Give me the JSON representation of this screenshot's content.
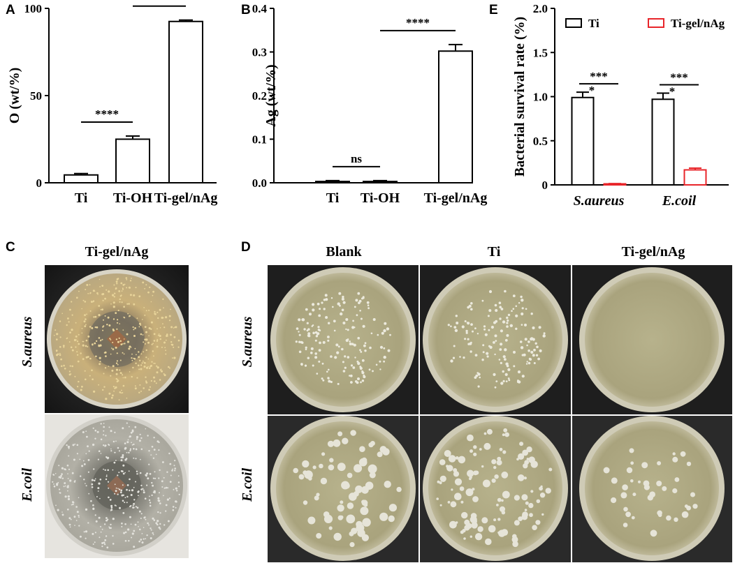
{
  "panels": {
    "A": {
      "letter": "A"
    },
    "B": {
      "letter": "B"
    },
    "C": {
      "letter": "C",
      "column_label": "Ti-gel/nAg",
      "row_labels": [
        "S.aureus",
        "E.coil"
      ]
    },
    "D": {
      "letter": "D",
      "column_labels": [
        "Blank",
        "Ti",
        "Ti-gel/nAg"
      ],
      "row_labels": [
        "S.aureus",
        "E.coil"
      ]
    },
    "E": {
      "letter": "E"
    }
  },
  "chart_data": [
    {
      "id": "A",
      "type": "bar",
      "ylabel": "O (wt/%)",
      "categories": [
        "Ti",
        "Ti-OH",
        "Ti-gel/nAg"
      ],
      "values": [
        4.5,
        25,
        92.5
      ],
      "errors": [
        0.8,
        1.8,
        0.8
      ],
      "ylim": [
        0,
        100
      ],
      "yticks": [
        "0",
        "50",
        "100"
      ],
      "bar_color": "#ffffff",
      "annotations": [
        {
          "text": "****",
          "between": [
            0,
            1
          ]
        },
        {
          "text": "****",
          "between": [
            1,
            2
          ]
        }
      ]
    },
    {
      "id": "B",
      "type": "bar",
      "ylabel": "Ag (wt/%)",
      "categories": [
        "Ti",
        "Ti-OH",
        "Ti-gel/nAg"
      ],
      "values": [
        0.003,
        0.003,
        0.302
      ],
      "errors": [
        0.002,
        0.002,
        0.015
      ],
      "ylim": [
        0,
        0.4
      ],
      "yticks": [
        "0.0",
        "0.1",
        "0.2",
        "0.3",
        "0.4"
      ],
      "bar_color": "#ffffff",
      "annotations": [
        {
          "text": "ns",
          "between": [
            0,
            1
          ]
        },
        {
          "text": "****",
          "between": [
            1,
            2
          ]
        }
      ]
    },
    {
      "id": "E",
      "type": "bar",
      "ylabel": "Bacterial survival rate (%)",
      "categories": [
        "S.aureus",
        "E.coil"
      ],
      "series": [
        {
          "name": "Ti",
          "values": [
            0.99,
            0.97
          ],
          "errors": [
            0.06,
            0.07
          ],
          "color": "#000000"
        },
        {
          "name": "Ti-gel/nAg",
          "values": [
            0.01,
            0.17
          ],
          "errors": [
            0.005,
            0.02
          ],
          "color": "#e8252a"
        }
      ],
      "ylim": [
        0,
        2.0
      ],
      "yticks": [
        "0",
        "0.5",
        "1.0",
        "1.5",
        "2.0"
      ],
      "legend": "top",
      "annotations": [
        {
          "text": "***",
          "category": 0
        },
        {
          "text": "*",
          "category": 0
        },
        {
          "text": "***",
          "category": 1
        },
        {
          "text": "*",
          "category": 1
        }
      ]
    }
  ]
}
